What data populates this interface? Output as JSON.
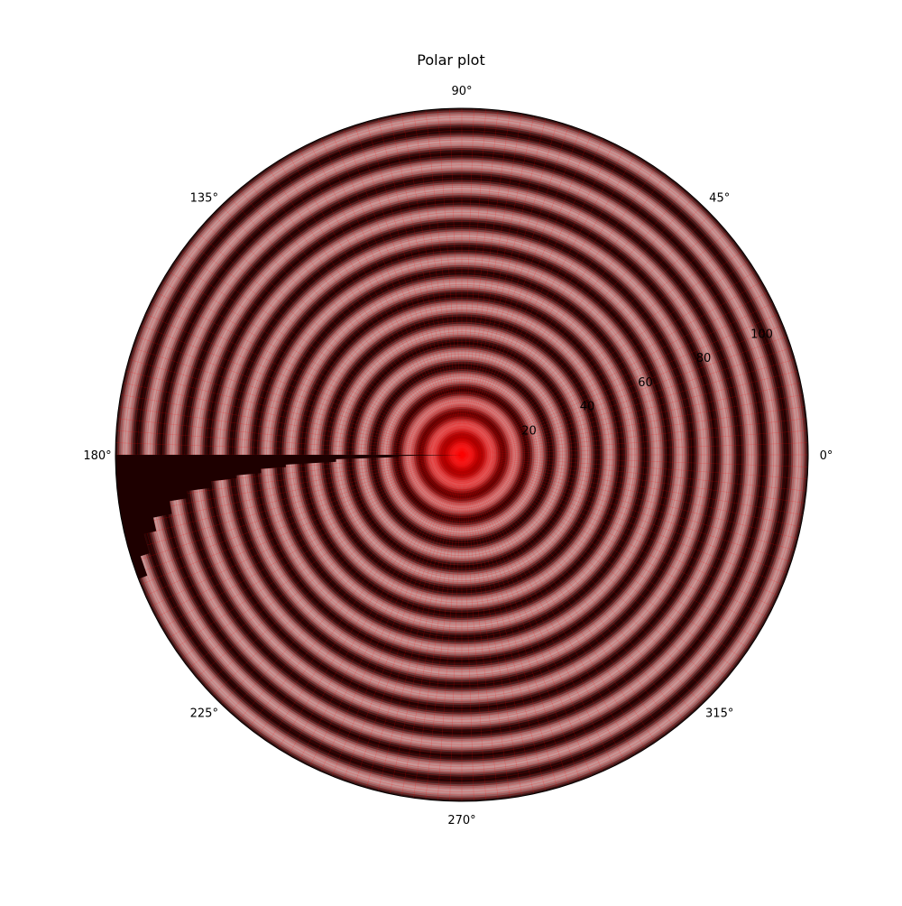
{
  "chart_data": {
    "type": "heatmap",
    "projection": "polar",
    "title": "Polar plot",
    "angular_ticks": [
      "0°",
      "45°",
      "90°",
      "135°",
      "180°",
      "225°",
      "270°",
      "315°"
    ],
    "angular_tick_values_deg": [
      0,
      45,
      90,
      135,
      180,
      225,
      270,
      315
    ],
    "radial_ticks": [
      20,
      40,
      60,
      80,
      100
    ],
    "radial_tick_labels": [
      "20",
      "40",
      "60",
      "80",
      "100"
    ],
    "rlim": [
      0,
      110
    ],
    "radial_label_angle_deg": 22.5,
    "field": {
      "description": "concentric ripple surface, radial wave with period of about 7.5 r-units",
      "wave_period_r": 7.5,
      "colormap": [
        "#1e0000",
        "#5a2828",
        "#a06464",
        "#c89696"
      ],
      "mesh_color": "#ff0000",
      "center_glow_radius_r": 30
    },
    "missing_wedge": {
      "theta_range_deg": [
        180,
        220
      ],
      "fill_color": "#1e0000",
      "step_radii_r": [
        0,
        28,
        40,
        52,
        70,
        82,
        90,
        96,
        100,
        104,
        106,
        108
      ]
    },
    "grid": true,
    "mesh_visible": true
  }
}
